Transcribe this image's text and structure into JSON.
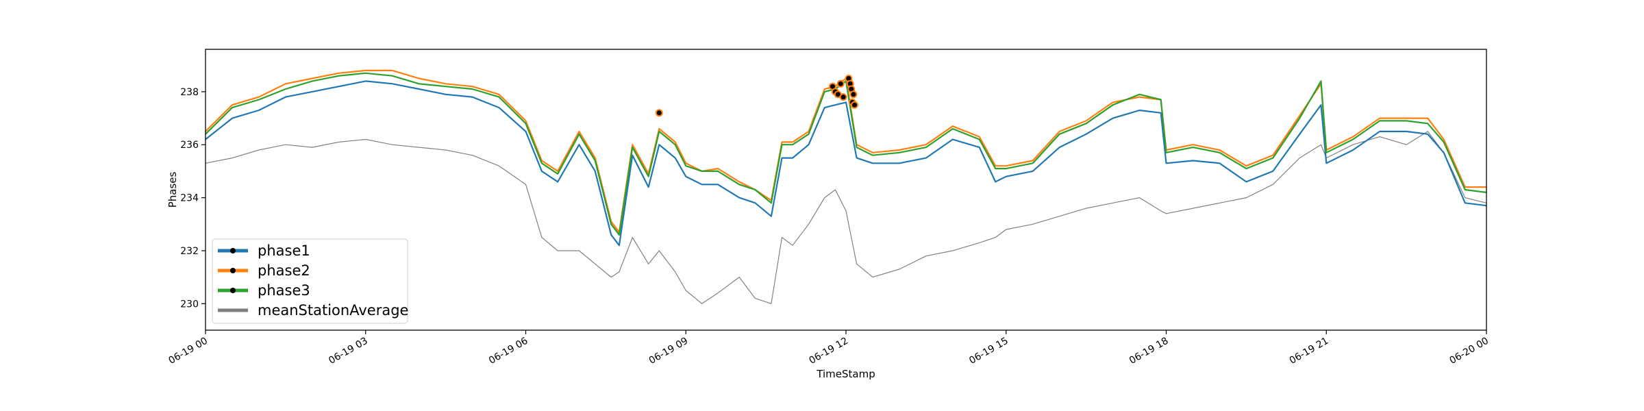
{
  "chart_data": {
    "type": "line",
    "xlabel": "TimeStamp",
    "ylabel": "Phases",
    "x_range": [
      "06-19 00",
      "06-20 00"
    ],
    "x_range_hours": [
      0,
      24
    ],
    "ylim": [
      229.0,
      239.6
    ],
    "grid": false,
    "legend_position": "lower-left",
    "x_ticks": [
      {
        "hour": 0,
        "label": "06-19 00"
      },
      {
        "hour": 3,
        "label": "06-19 03"
      },
      {
        "hour": 6,
        "label": "06-19 06"
      },
      {
        "hour": 9,
        "label": "06-19 09"
      },
      {
        "hour": 12,
        "label": "06-19 12"
      },
      {
        "hour": 15,
        "label": "06-19 15"
      },
      {
        "hour": 18,
        "label": "06-19 18"
      },
      {
        "hour": 21,
        "label": "06-19 21"
      },
      {
        "hour": 24,
        "label": "06-20 00"
      }
    ],
    "y_ticks": [
      230,
      232,
      234,
      236,
      238
    ],
    "x_hours": [
      0,
      0.5,
      1,
      1.5,
      2,
      2.5,
      3,
      3.5,
      4,
      4.5,
      5,
      5.5,
      6,
      6.3,
      6.6,
      7,
      7.3,
      7.6,
      7.75,
      8,
      8.3,
      8.5,
      8.8,
      9,
      9.3,
      9.6,
      10,
      10.3,
      10.6,
      10.8,
      11,
      11.3,
      11.6,
      11.8,
      12,
      12.2,
      12.5,
      13,
      13.5,
      14,
      14.5,
      14.8,
      15,
      15.5,
      16,
      16.5,
      17,
      17.5,
      17.9,
      18,
      18.5,
      19,
      19.5,
      20,
      20.5,
      20.9,
      21,
      21.5,
      22,
      22.5,
      22.9,
      23.2,
      23.6,
      24
    ],
    "series": [
      {
        "name": "phase1",
        "color": "#1f77b4",
        "values": [
          236.2,
          237.0,
          237.3,
          237.8,
          238.0,
          238.2,
          238.4,
          238.3,
          238.1,
          237.9,
          237.8,
          237.4,
          236.5,
          235.0,
          234.6,
          236.0,
          235.0,
          232.6,
          232.2,
          235.6,
          234.4,
          236.0,
          235.5,
          234.8,
          234.5,
          234.5,
          234.0,
          233.8,
          233.3,
          235.5,
          235.5,
          236.0,
          237.4,
          237.5,
          237.6,
          235.5,
          235.3,
          235.3,
          235.5,
          236.2,
          235.9,
          234.6,
          234.8,
          235.0,
          235.9,
          236.4,
          237.0,
          237.3,
          237.2,
          235.3,
          235.4,
          235.3,
          234.6,
          235.0,
          236.4,
          237.5,
          235.3,
          235.8,
          236.5,
          236.5,
          236.4,
          235.7,
          233.8,
          233.7
        ]
      },
      {
        "name": "phase2",
        "color": "#ff7f0e",
        "values": [
          236.5,
          237.5,
          237.8,
          238.3,
          238.5,
          238.7,
          238.8,
          238.8,
          238.5,
          238.3,
          238.2,
          237.9,
          236.9,
          235.4,
          235.0,
          236.5,
          235.5,
          233.1,
          232.7,
          236.0,
          234.9,
          236.6,
          236.1,
          235.3,
          235.0,
          235.1,
          234.6,
          234.3,
          233.9,
          236.1,
          236.1,
          236.5,
          238.1,
          238.2,
          238.5,
          236.0,
          235.7,
          235.8,
          236.0,
          236.7,
          236.3,
          235.2,
          235.2,
          235.4,
          236.5,
          236.9,
          237.6,
          237.8,
          237.7,
          235.8,
          236.0,
          235.8,
          235.2,
          235.6,
          237.1,
          238.3,
          235.8,
          236.3,
          237.0,
          237.0,
          237.0,
          236.2,
          234.4,
          234.4
        ]
      },
      {
        "name": "phase3",
        "color": "#2ca02c",
        "values": [
          236.4,
          237.4,
          237.7,
          238.1,
          238.4,
          238.6,
          238.7,
          238.6,
          238.3,
          238.2,
          238.1,
          237.8,
          236.8,
          235.3,
          234.9,
          236.4,
          235.4,
          233.0,
          232.6,
          235.9,
          234.8,
          236.5,
          236.0,
          235.2,
          235.0,
          235.0,
          234.5,
          234.3,
          233.8,
          236.0,
          236.0,
          236.4,
          238.0,
          238.1,
          238.4,
          235.9,
          235.6,
          235.7,
          235.9,
          236.6,
          236.2,
          235.1,
          235.1,
          235.3,
          236.4,
          236.8,
          237.5,
          237.9,
          237.7,
          235.7,
          235.9,
          235.7,
          235.1,
          235.5,
          237.0,
          238.4,
          235.7,
          236.2,
          236.9,
          236.9,
          236.8,
          236.1,
          234.3,
          234.2
        ]
      },
      {
        "name": "meanStationAverage",
        "color": "#808080",
        "values": [
          235.3,
          235.5,
          235.8,
          236.0,
          235.9,
          236.1,
          236.2,
          236.0,
          235.9,
          235.8,
          235.6,
          235.2,
          234.5,
          232.5,
          232.0,
          232.0,
          231.5,
          231.0,
          231.2,
          232.5,
          231.5,
          232.0,
          231.2,
          230.5,
          230.0,
          230.4,
          231.0,
          230.2,
          230.0,
          232.5,
          232.2,
          233.0,
          234.0,
          234.3,
          233.5,
          231.5,
          231.0,
          231.3,
          231.8,
          232.0,
          232.3,
          232.5,
          232.8,
          233.0,
          233.3,
          233.6,
          233.8,
          234.0,
          233.5,
          233.4,
          233.6,
          233.8,
          234.0,
          234.5,
          235.5,
          236.0,
          235.5,
          236.0,
          236.3,
          236.0,
          236.5,
          235.7,
          234.0,
          233.8
        ]
      }
    ],
    "anomaly_points": [
      {
        "hour": 8.5,
        "value": 237.2
      },
      {
        "hour": 11.75,
        "value": 238.2
      },
      {
        "hour": 11.8,
        "value": 238.0
      },
      {
        "hour": 11.85,
        "value": 237.9
      },
      {
        "hour": 11.9,
        "value": 238.3
      },
      {
        "hour": 11.95,
        "value": 237.8
      },
      {
        "hour": 12.05,
        "value": 238.5
      },
      {
        "hour": 12.08,
        "value": 238.3
      },
      {
        "hour": 12.1,
        "value": 238.1
      },
      {
        "hour": 12.12,
        "value": 237.6
      },
      {
        "hour": 12.14,
        "value": 237.9
      },
      {
        "hour": 12.16,
        "value": 237.5
      }
    ],
    "legend": [
      {
        "label": "phase1",
        "color": "#1f77b4",
        "marker": true
      },
      {
        "label": "phase2",
        "color": "#ff7f0e",
        "marker": true
      },
      {
        "label": "phase3",
        "color": "#2ca02c",
        "marker": true
      },
      {
        "label": "meanStationAverage",
        "color": "#808080",
        "marker": false
      }
    ]
  }
}
